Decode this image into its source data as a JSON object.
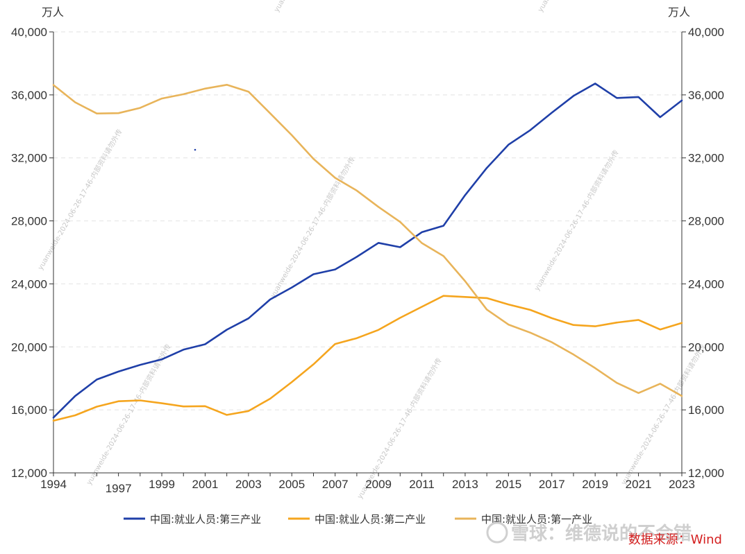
{
  "chart_data": {
    "type": "line",
    "y_unit_left": "万人",
    "y_unit_right": "万人",
    "ylim": [
      12000,
      40000
    ],
    "y_ticks": [
      12000,
      16000,
      20000,
      24000,
      28000,
      32000,
      36000,
      40000
    ],
    "y_tick_labels": [
      "12,000",
      "16,000",
      "20,000",
      "24,000",
      "28,000",
      "32,000",
      "36,000",
      "40,000"
    ],
    "xlim": [
      1994,
      2023
    ],
    "x_tick_labels_top": [
      "1994",
      "1999",
      "2001",
      "2003",
      "2005",
      "2007",
      "2009",
      "2011",
      "2013",
      "2015",
      "2017",
      "2019",
      "2021",
      "2023"
    ],
    "x_tick_labels_bottom": [
      "1997"
    ],
    "grid": "horizontal dashed",
    "legend_position": "bottom",
    "x": [
      1994,
      1995,
      1996,
      1997,
      1998,
      1999,
      2000,
      2001,
      2002,
      2003,
      2004,
      2005,
      2006,
      2007,
      2008,
      2009,
      2010,
      2011,
      2012,
      2013,
      2014,
      2015,
      2016,
      2017,
      2018,
      2019,
      2020,
      2021,
      2022,
      2023
    ],
    "series": [
      {
        "name": "中国:就业人员:第三产业",
        "color": "#1f3fa8",
        "values": [
          15515,
          16880,
          17927,
          18432,
          18860,
          19205,
          19823,
          20165,
          21090,
          21809,
          23011,
          23771,
          24614,
          24917,
          25717,
          26603,
          26332,
          27282,
          27690,
          29636,
          31364,
          32839,
          33757,
          34872,
          35938,
          36721,
          35806,
          35868,
          34583,
          35644
        ]
      },
      {
        "name": "中国:就业人员:第二产业",
        "color": "#f5a51e",
        "values": [
          15312,
          15655,
          16203,
          16547,
          16600,
          16421,
          16219,
          16234,
          15682,
          15927,
          16709,
          17766,
          18894,
          20186,
          20553,
          21080,
          21842,
          22544,
          23241,
          23170,
          23099,
          22693,
          22350,
          21824,
          21390,
          21305,
          21543,
          21712,
          21105,
          21520
        ]
      },
      {
        "name": "中国:就业人员:第一产业",
        "color": "#e8b45a",
        "values": [
          36628,
          35530,
          34820,
          34840,
          35177,
          35768,
          36043,
          36399,
          36640,
          36204,
          34830,
          33442,
          31941,
          30731,
          29923,
          28890,
          27931,
          26594,
          25773,
          24171,
          22372,
          21418,
          20908,
          20295,
          19515,
          18652,
          17715,
          17072,
          17663,
          16882
        ]
      }
    ],
    "source_note": "数据来源：Wind"
  },
  "watermarks": {
    "diagonal": "yuanweide-2024-06-26-17-46-内部资料请勿外传",
    "corner": "yuanweide",
    "brand": "雪球：维德说的不会错"
  }
}
